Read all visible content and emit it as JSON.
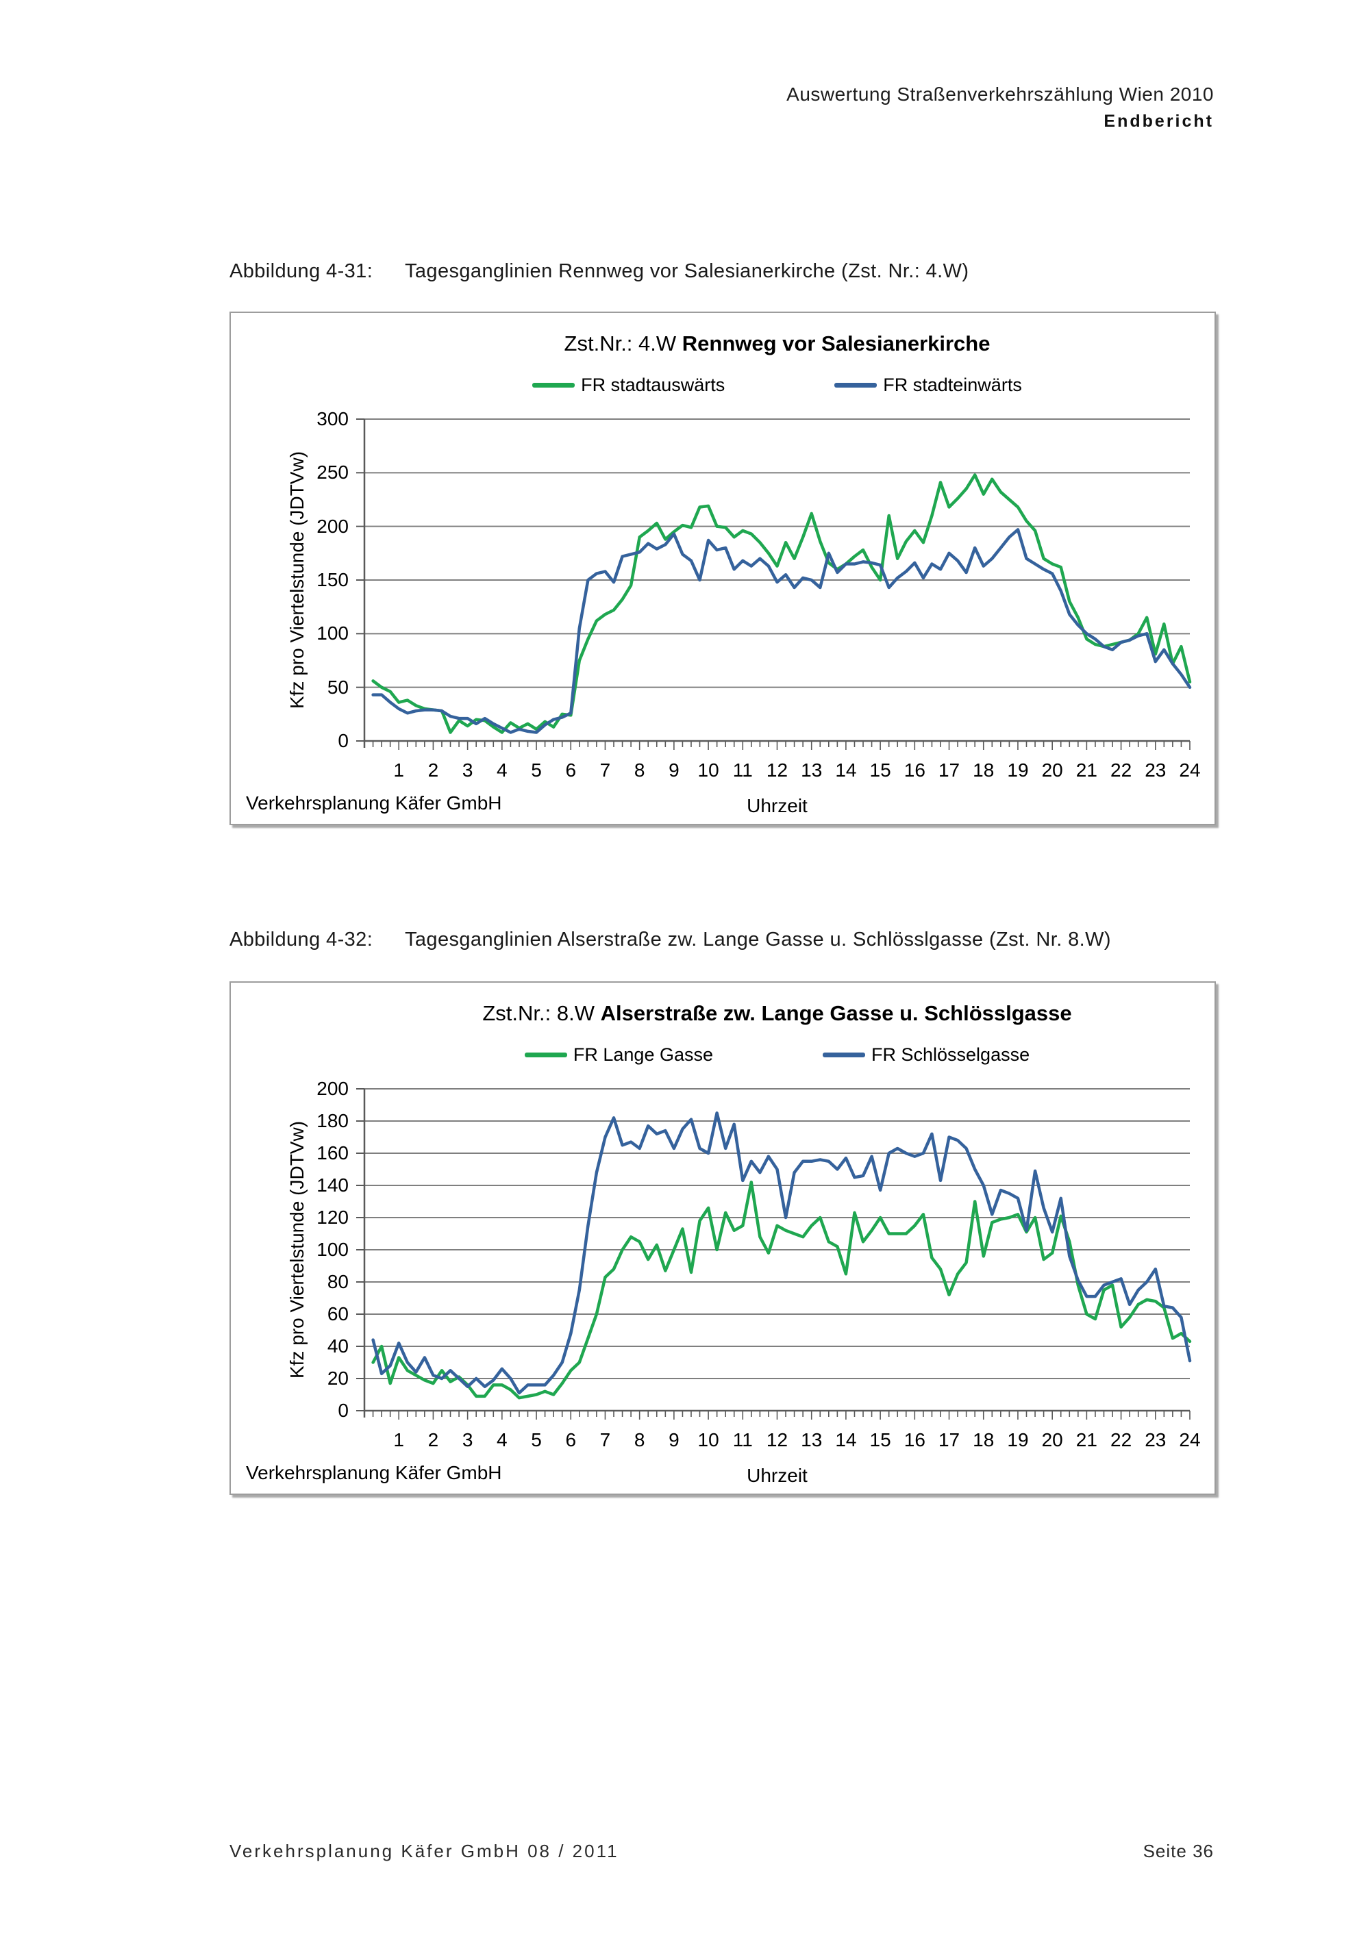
{
  "page": {
    "header_line1": "Auswertung Straßenverkehrszählung Wien 2010",
    "header_line2": "Endbericht",
    "footer_left": "Verkehrsplanung Käfer GmbH  08 / 2011",
    "footer_right": "Seite 36"
  },
  "chart_data": [
    {
      "type": "line",
      "caption_label": "Abbildung 4-31:",
      "caption_text": "Tagesganglinien Rennweg vor Salesianerkirche (Zst. Nr.: 4.W)",
      "title_prefix": "Zst.Nr.: 4.W ",
      "title_bold": "Rennweg vor Salesianerkirche",
      "source_note": "Verkehrsplanung Käfer GmbH",
      "xlabel": "Uhrzeit",
      "ylabel": "Kfz pro Viertelstunde (JDTVw)",
      "legend_position": "top",
      "grid": "horizontal",
      "x_unit": "hour",
      "x_start": 0.25,
      "x_step": 0.25,
      "x_ticks": [
        1,
        2,
        3,
        4,
        5,
        6,
        7,
        8,
        9,
        10,
        11,
        12,
        13,
        14,
        15,
        16,
        17,
        18,
        19,
        20,
        21,
        22,
        23,
        24
      ],
      "y_axis": {
        "min": 0,
        "max": 300,
        "step": 50,
        "ticks": [
          0,
          50,
          100,
          150,
          200,
          250,
          300
        ]
      },
      "series": [
        {
          "name": "FR stadtauswärts",
          "color": "#1fa750",
          "values": [
            56,
            50,
            46,
            36,
            38,
            33,
            30,
            29,
            28,
            8,
            19,
            14,
            20,
            19,
            13,
            8,
            17,
            12,
            16,
            11,
            18,
            13,
            25,
            24,
            75,
            95,
            112,
            118,
            122,
            132,
            145,
            190,
            196,
            203,
            188,
            195,
            201,
            199,
            218,
            219,
            200,
            199,
            190,
            196,
            193,
            185,
            175,
            163,
            185,
            170,
            190,
            212,
            186,
            166,
            160,
            165,
            172,
            178,
            162,
            150,
            210,
            170,
            186,
            196,
            185,
            210,
            241,
            218,
            226,
            235,
            248,
            230,
            244,
            232,
            225,
            218,
            205,
            196,
            170,
            165,
            162,
            130,
            115,
            95,
            90,
            88,
            90,
            92,
            94,
            100,
            115,
            81,
            109,
            72,
            88,
            55
          ]
        },
        {
          "name": "FR stadteinwärts",
          "color": "#35629c",
          "values": [
            43,
            43,
            36,
            30,
            26,
            28,
            29,
            29,
            28,
            23,
            21,
            21,
            16,
            21,
            16,
            12,
            8,
            11,
            9,
            8,
            15,
            20,
            22,
            26,
            105,
            150,
            156,
            158,
            148,
            172,
            174,
            176,
            184,
            179,
            183,
            193,
            174,
            168,
            150,
            187,
            178,
            180,
            160,
            168,
            163,
            170,
            163,
            148,
            155,
            143,
            152,
            150,
            143,
            175,
            157,
            165,
            165,
            167,
            166,
            164,
            143,
            152,
            158,
            166,
            152,
            165,
            160,
            175,
            168,
            157,
            180,
            163,
            170,
            180,
            190,
            197,
            170,
            165,
            160,
            156,
            140,
            118,
            108,
            100,
            95,
            88,
            85,
            92,
            94,
            98,
            100,
            74,
            85,
            72,
            62,
            50
          ]
        }
      ]
    },
    {
      "type": "line",
      "caption_label": "Abbildung 4-32:",
      "caption_text": "Tagesganglinien Alserstraße zw. Lange Gasse u. Schlösslgasse (Zst. Nr. 8.W)",
      "title_prefix": "Zst.Nr.: 8.W ",
      "title_bold": "Alserstraße zw. Lange Gasse u. Schlösslgasse",
      "source_note": "Verkehrsplanung Käfer GmbH",
      "xlabel": "Uhrzeit",
      "ylabel": "Kfz pro Viertelstunde (JDTVw)",
      "legend_position": "top",
      "grid": "horizontal",
      "x_unit": "hour",
      "x_start": 0.25,
      "x_step": 0.25,
      "x_ticks": [
        1,
        2,
        3,
        4,
        5,
        6,
        7,
        8,
        9,
        10,
        11,
        12,
        13,
        14,
        15,
        16,
        17,
        18,
        19,
        20,
        21,
        22,
        23,
        24
      ],
      "y_axis": {
        "min": 0,
        "max": 200,
        "step": 20,
        "ticks": [
          0,
          20,
          40,
          60,
          80,
          100,
          120,
          140,
          160,
          180,
          200
        ]
      },
      "series": [
        {
          "name": "FR Lange Gasse",
          "color": "#1fa750",
          "values": [
            30,
            40,
            17,
            33,
            25,
            22,
            19,
            17,
            25,
            18,
            21,
            16,
            9,
            9,
            16,
            16,
            13,
            8,
            9,
            10,
            12,
            10,
            17,
            25,
            30,
            45,
            60,
            83,
            88,
            100,
            108,
            105,
            94,
            103,
            87,
            100,
            113,
            86,
            118,
            126,
            100,
            123,
            112,
            115,
            142,
            108,
            98,
            115,
            112,
            110,
            108,
            115,
            120,
            105,
            102,
            85,
            123,
            105,
            112,
            120,
            110,
            110,
            110,
            115,
            122,
            95,
            88,
            72,
            85,
            92,
            130,
            96,
            117,
            119,
            120,
            122,
            111,
            120,
            94,
            98,
            121,
            105,
            78,
            60,
            57,
            75,
            78,
            52,
            58,
            66,
            69,
            68,
            64,
            45,
            48,
            43
          ]
        },
        {
          "name": "FR Schlösselgasse",
          "color": "#35629c",
          "values": [
            44,
            23,
            28,
            42,
            30,
            24,
            33,
            22,
            20,
            25,
            20,
            15,
            20,
            15,
            19,
            26,
            20,
            11,
            16,
            16,
            16,
            22,
            30,
            48,
            75,
            115,
            148,
            170,
            182,
            165,
            167,
            163,
            177,
            172,
            174,
            163,
            175,
            181,
            163,
            160,
            185,
            163,
            178,
            143,
            155,
            148,
            158,
            150,
            120,
            148,
            155,
            155,
            156,
            155,
            150,
            157,
            145,
            146,
            158,
            137,
            160,
            163,
            160,
            158,
            160,
            172,
            143,
            170,
            168,
            163,
            150,
            140,
            122,
            137,
            135,
            132,
            112,
            149,
            126,
            111,
            132,
            96,
            81,
            71,
            71,
            78,
            80,
            82,
            66,
            75,
            80,
            88,
            65,
            64,
            58,
            31
          ]
        }
      ]
    }
  ],
  "layout": {
    "caption_tops": [
      380,
      1356
    ],
    "box_tops": [
      455,
      1433
    ],
    "colors": {
      "grid": "#7f7f7f",
      "axis": "#595959",
      "border": "#9d9d9d"
    }
  }
}
